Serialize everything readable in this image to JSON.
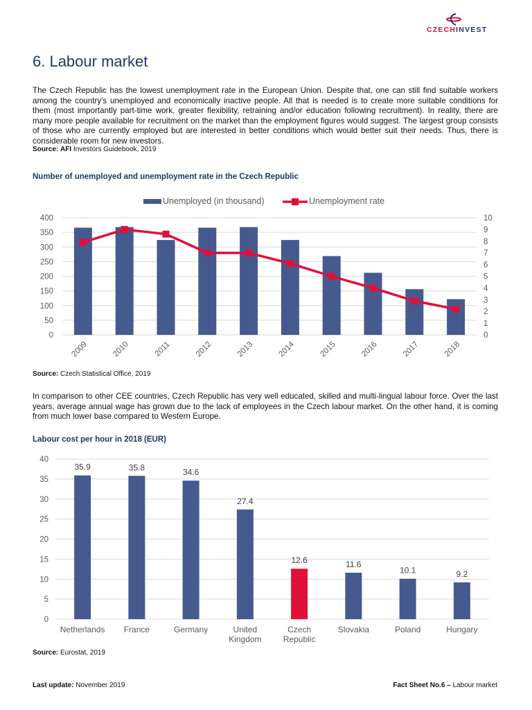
{
  "header": {
    "logo_text_a": "CZECH",
    "logo_text_b": "INVEST"
  },
  "title": "6. Labour market",
  "intro": "The Czech Republic has the lowest unemployment rate in the European Union. Despite that, one can still find suitable workers among the country's unemployed and economically inactive people. All that is needed is to create more suitable conditions for them (most importantly part-time work, greater flexibility, retraining and/or education following recruitment). In reality, there are many more people available for recruitment on the market than the employment figures would suggest. The largest group consists of those who are currently employed but are interested in better conditions which would better suit their needs. Thus, there is considerable room for new investors.",
  "source1": {
    "label": "Source:",
    "bold": "AFI",
    "text": " Investors Guidebook, 2019"
  },
  "chart1_title": "Number of unemployed and unemployment rate in the Czech Republic",
  "source2": {
    "label": "Source:",
    "text": " Czech Statistical Office, 2019"
  },
  "para2": "In comparison to other CEE countries, Czech Republic has very well educated, skilled and multi-lingual labour force. Over the last years, average annual wage has grown due to the lack of employees in the Czech labour market. On the other hand, it is coming from much lower base compared to Western Europe.",
  "chart2_title": "Labour cost per hour in 2018 (EUR)",
  "source3": {
    "label": "Source:",
    "text": " Eurostat, 2019"
  },
  "footer": {
    "left_label": "Last update:",
    "left_text": " November 2019",
    "right_label": "Fact Sheet No.6 –",
    "right_text": " Labour market"
  },
  "chart_data": [
    {
      "type": "bar+line",
      "categories": [
        "2009",
        "2010",
        "2011",
        "2012",
        "2013",
        "2014",
        "2015",
        "2016",
        "2017",
        "2018"
      ],
      "series": [
        {
          "name": "Unemployed (in thousand)",
          "type": "bar",
          "axis": "left",
          "values": [
            366,
            368,
            324,
            366,
            368,
            324,
            269,
            212,
            156,
            122
          ],
          "color": "#455a8f"
        },
        {
          "name": "Unemployment rate",
          "type": "line",
          "axis": "right",
          "values": [
            7.9,
            9.0,
            8.6,
            7.0,
            7.0,
            6.1,
            5.0,
            4.0,
            2.9,
            2.2
          ],
          "color": "#e0103a"
        }
      ],
      "ylim": [
        0,
        400
      ],
      "yticks": [
        0,
        50,
        100,
        150,
        200,
        250,
        300,
        350,
        400
      ],
      "y2lim": [
        0,
        10
      ],
      "y2ticks": [
        0,
        1,
        2,
        3,
        4,
        5,
        6,
        7,
        8,
        9,
        10
      ],
      "legend": "top",
      "grid": true
    },
    {
      "type": "bar",
      "categories": [
        "Netherlands",
        "France",
        "Germany",
        "United Kingdom",
        "Czech Republic",
        "Slovakia",
        "Poland",
        "Hungary"
      ],
      "values": [
        35.9,
        35.8,
        34.6,
        27.4,
        12.6,
        11.6,
        10.1,
        9.2
      ],
      "colors": [
        "#455a8f",
        "#455a8f",
        "#455a8f",
        "#455a8f",
        "#e0103a",
        "#455a8f",
        "#455a8f",
        "#455a8f"
      ],
      "ylim": [
        0,
        40
      ],
      "yticks": [
        0,
        5,
        10,
        15,
        20,
        25,
        30,
        35,
        40
      ],
      "grid": true,
      "data_labels": true
    }
  ]
}
